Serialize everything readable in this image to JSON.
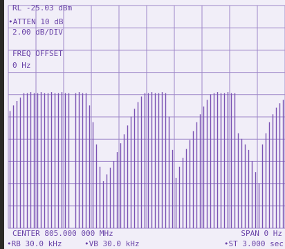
{
  "chart_data": {
    "type": "bar",
    "annotations": [
      "RL -25.03 dBm",
      "•ATTEN 10 dB",
      "2.00 dB/DIV",
      "FREQ OFFSET",
      "0 Hz",
      "CENTER 805.000 000 MHz",
      "SPAN 0 Hz",
      "•RB 30.0 kHz",
      "•VB 30.0 kHz",
      "•ST 3.000 sec"
    ],
    "values": [
      -34.5,
      -34.0,
      -33.6,
      -33.3,
      -32.9,
      -32.9,
      -32.8,
      -32.9,
      -32.9,
      -32.8,
      -32.9,
      -32.9,
      -32.8,
      -32.9,
      -32.9,
      -32.8,
      -32.9,
      -32.9,
      null,
      -32.9,
      -32.8,
      -32.9,
      -32.9,
      -34.0,
      -35.5,
      -37.5,
      -39.5,
      -40.8,
      -40.2,
      -39.6,
      -39.0,
      -38.2,
      -37.4,
      -36.6,
      -35.8,
      -35.0,
      -34.3,
      -33.7,
      -33.2,
      -32.9,
      -32.9,
      -32.8,
      -32.9,
      -32.9,
      -32.8,
      -32.9,
      -35.0,
      -38.0,
      -40.5,
      -39.5,
      -38.7,
      -37.9,
      -37.1,
      -36.3,
      -35.5,
      -34.8,
      -34.1,
      -33.5,
      -33.0,
      -32.9,
      -32.8,
      -32.9,
      -32.9,
      -32.8,
      -32.9,
      -32.9,
      -36.5,
      -37.0,
      -37.5,
      -38.0,
      -39.0,
      -40.0,
      -41.0,
      -37.5,
      -36.5,
      -35.5,
      -34.8,
      -34.2,
      -33.8,
      -33.5
    ],
    "color": "#7a52b3",
    "ylim": [
      -45.03,
      -25.03
    ],
    "grid": true
  }
}
